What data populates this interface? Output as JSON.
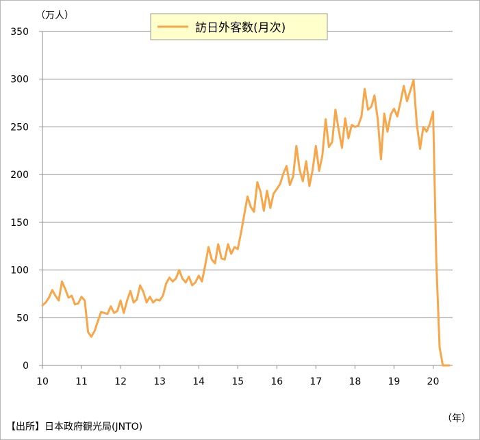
{
  "chart_data": {
    "type": "line",
    "unit_label": "（万人）",
    "year_label": "（年）",
    "source": "【出所】日本政府観光局(JNTO)",
    "legend": "訪日外客数(月次)",
    "line_color": "#f7a649",
    "ylim": [
      0,
      350
    ],
    "xlim": [
      10,
      20.5
    ],
    "y_ticks": [
      "0",
      "50",
      "100",
      "150",
      "200",
      "250",
      "300",
      "350"
    ],
    "x_ticks": [
      "10",
      "11",
      "12",
      "13",
      "14",
      "15",
      "16",
      "17",
      "18",
      "19",
      "20"
    ],
    "grid": "horizontal",
    "series": [
      {
        "name": "訪日外客数(月次)",
        "x_start": "2010-01",
        "values": [
          63,
          66,
          71,
          79,
          73,
          68,
          88,
          80,
          71,
          73,
          64,
          65,
          72,
          68,
          35,
          30,
          36,
          46,
          56,
          55,
          54,
          62,
          55,
          57,
          68,
          55,
          68,
          78,
          66,
          69,
          84,
          77,
          66,
          72,
          66,
          69,
          68,
          73,
          86,
          92,
          88,
          91,
          100,
          91,
          87,
          93,
          84,
          87,
          94,
          88,
          105,
          124,
          111,
          107,
          127,
          112,
          111,
          127,
          117,
          124,
          122,
          139,
          158,
          177,
          166,
          161,
          192,
          182,
          162,
          183,
          165,
          180,
          185,
          190,
          201,
          209,
          189,
          198,
          230,
          205,
          193,
          214,
          188,
          205,
          230,
          204,
          220,
          258,
          229,
          234,
          268,
          247,
          228,
          259,
          238,
          252,
          250,
          251,
          261,
          290,
          268,
          271,
          283,
          258,
          216,
          264,
          245,
          263,
          269,
          261,
          276,
          293,
          277,
          288,
          299,
          253,
          227,
          250,
          245,
          253,
          266,
          109,
          19,
          0,
          0,
          0
        ]
      }
    ]
  }
}
